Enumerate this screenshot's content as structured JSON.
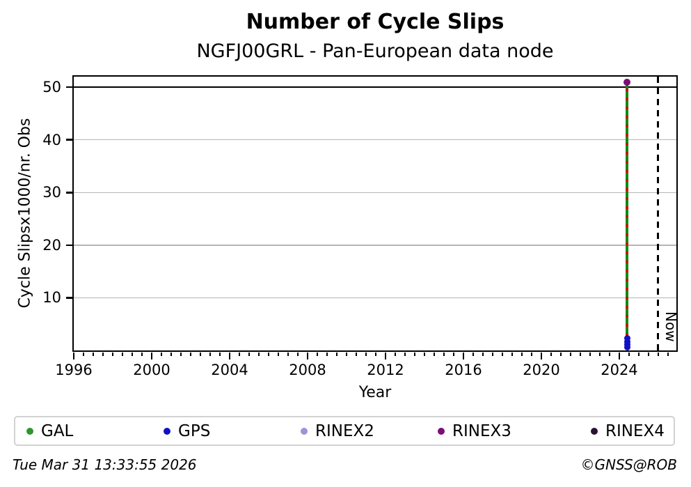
{
  "header": {
    "title": "Number of Cycle Slips",
    "subtitle": "NGFJ00GRL - Pan-European data node"
  },
  "chart_data": {
    "type": "scatter",
    "title": "Number of Cycle Slips",
    "subtitle": "NGFJ00GRL - Pan-European data node",
    "xlabel": "Year",
    "ylabel": "Cycle Slipsx1000/nr. Obs",
    "xlim": [
      1996,
      2026.93
    ],
    "ylim": [
      0,
      52
    ],
    "x_major_ticks": [
      1996,
      2000,
      2004,
      2008,
      2012,
      2016,
      2020,
      2024
    ],
    "x_minor_step": 0.5,
    "y_ticks": [
      10,
      20,
      30,
      40,
      50
    ],
    "grid": true,
    "grid_color": "#b5b5b5",
    "threshold_line": {
      "y": 50,
      "color": "#000000"
    },
    "now_line": {
      "x": 2026.0,
      "label": "Now",
      "style": "dashed",
      "color": "#000000"
    },
    "event_line": {
      "x": 2024.4,
      "y_from": 0.8,
      "y_to": 51,
      "solid_color": "#0d8c0d",
      "dash_color": "#cc1111"
    },
    "series": [
      {
        "name": "GAL",
        "color": "#2e962e",
        "points": []
      },
      {
        "name": "GPS",
        "color": "#1111c4",
        "points": [
          [
            2024.4,
            2.3
          ],
          [
            2024.41,
            1.7
          ],
          [
            2024.4,
            1.1
          ],
          [
            2024.41,
            0.6
          ]
        ]
      },
      {
        "name": "RINEX2",
        "color": "#9b95d6",
        "points": []
      },
      {
        "name": "RINEX3",
        "color": "#7c0d78",
        "points": [
          [
            2024.4,
            51.0
          ]
        ]
      },
      {
        "name": "RINEX4",
        "color": "#2c1232",
        "points": []
      }
    ],
    "legend_position": "bottom"
  },
  "legend": {
    "items": [
      {
        "label": "GAL",
        "color": "#2e962e"
      },
      {
        "label": "GPS",
        "color": "#1111c4"
      },
      {
        "label": "RINEX2",
        "color": "#9b95d6"
      },
      {
        "label": "RINEX3",
        "color": "#7c0d78"
      },
      {
        "label": "RINEX4",
        "color": "#2c1232"
      }
    ]
  },
  "footer": {
    "timestamp": "Tue Mar 31 13:33:55 2026",
    "credit": "©GNSS@ROB"
  }
}
